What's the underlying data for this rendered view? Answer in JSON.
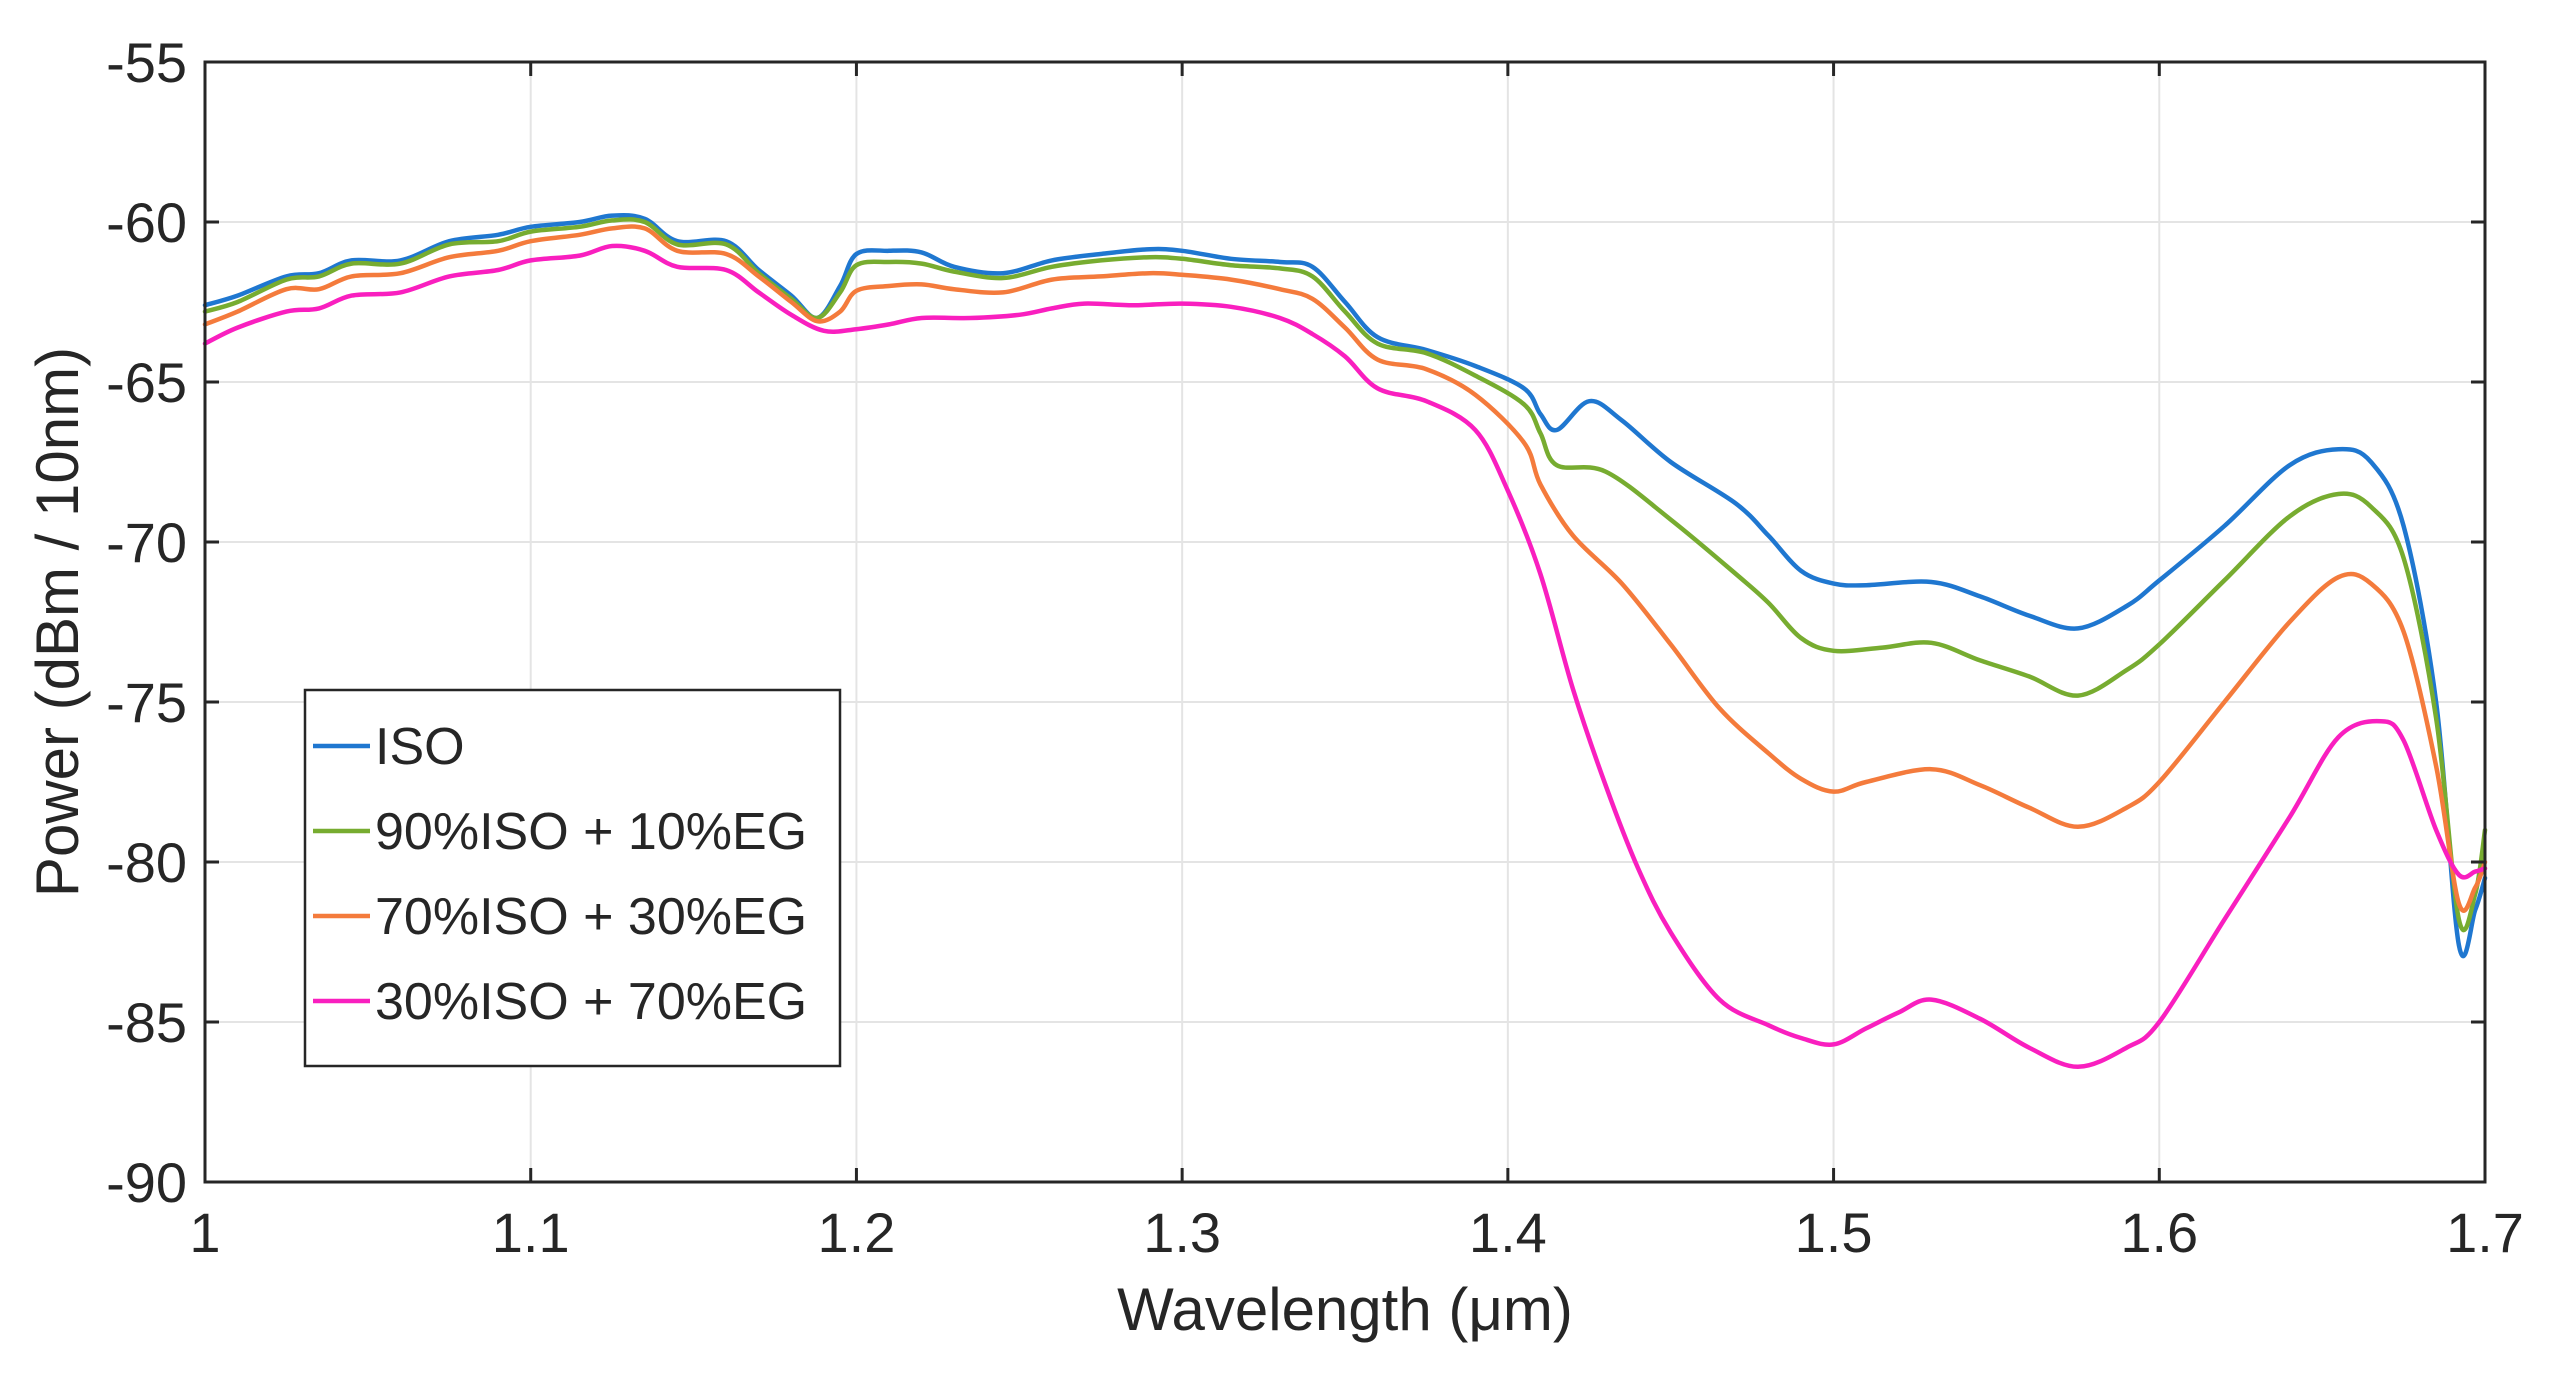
{
  "chart_data": {
    "type": "line",
    "title": "",
    "xlabel": "Wavelength (μm)",
    "ylabel": "Power (dBm / 10nm)",
    "xlim": [
      1.0,
      1.7
    ],
    "ylim": [
      -90,
      -55
    ],
    "grid": true,
    "legend_position": "lower-left",
    "x_ticks": [
      "1",
      "1.1",
      "1.2",
      "1.3",
      "1.4",
      "1.5",
      "1.6",
      "1.7"
    ],
    "y_ticks": [
      "-55",
      "-60",
      "-65",
      "-70",
      "-75",
      "-80",
      "-85",
      "-90"
    ],
    "series": [
      {
        "name": "ISO",
        "color": "#1f77d0",
        "points": [
          [
            1.0,
            -62.6
          ],
          [
            1.01,
            -62.3
          ],
          [
            1.025,
            -61.7
          ],
          [
            1.035,
            -61.6
          ],
          [
            1.045,
            -61.2
          ],
          [
            1.06,
            -61.2
          ],
          [
            1.075,
            -60.6
          ],
          [
            1.09,
            -60.4
          ],
          [
            1.1,
            -60.15
          ],
          [
            1.115,
            -60.0
          ],
          [
            1.125,
            -59.8
          ],
          [
            1.135,
            -59.9
          ],
          [
            1.145,
            -60.6
          ],
          [
            1.16,
            -60.6
          ],
          [
            1.17,
            -61.5
          ],
          [
            1.18,
            -62.3
          ],
          [
            1.188,
            -63.0
          ],
          [
            1.195,
            -62.0
          ],
          [
            1.2,
            -61.0
          ],
          [
            1.21,
            -60.9
          ],
          [
            1.22,
            -60.95
          ],
          [
            1.23,
            -61.4
          ],
          [
            1.245,
            -61.6
          ],
          [
            1.26,
            -61.2
          ],
          [
            1.275,
            -61.0
          ],
          [
            1.29,
            -60.85
          ],
          [
            1.3,
            -60.9
          ],
          [
            1.315,
            -61.15
          ],
          [
            1.33,
            -61.25
          ],
          [
            1.34,
            -61.4
          ],
          [
            1.35,
            -62.5
          ],
          [
            1.36,
            -63.6
          ],
          [
            1.375,
            -64.0
          ],
          [
            1.39,
            -64.5
          ],
          [
            1.405,
            -65.2
          ],
          [
            1.41,
            -66.0
          ],
          [
            1.415,
            -66.5
          ],
          [
            1.425,
            -65.6
          ],
          [
            1.435,
            -66.2
          ],
          [
            1.45,
            -67.5
          ],
          [
            1.47,
            -68.8
          ],
          [
            1.48,
            -69.8
          ],
          [
            1.49,
            -70.9
          ],
          [
            1.5,
            -71.3
          ],
          [
            1.51,
            -71.35
          ],
          [
            1.53,
            -71.25
          ],
          [
            1.545,
            -71.7
          ],
          [
            1.56,
            -72.3
          ],
          [
            1.575,
            -72.7
          ],
          [
            1.59,
            -72.0
          ],
          [
            1.6,
            -71.2
          ],
          [
            1.62,
            -69.5
          ],
          [
            1.64,
            -67.6
          ],
          [
            1.655,
            -67.1
          ],
          [
            1.665,
            -67.5
          ],
          [
            1.675,
            -69.5
          ],
          [
            1.685,
            -75.0
          ],
          [
            1.692,
            -82.6
          ],
          [
            1.697,
            -81.5
          ],
          [
            1.7,
            -80.5
          ]
        ]
      },
      {
        "name": "90%ISO + 10%EG",
        "color": "#77ac30",
        "points": [
          [
            1.0,
            -62.8
          ],
          [
            1.01,
            -62.5
          ],
          [
            1.025,
            -61.8
          ],
          [
            1.035,
            -61.7
          ],
          [
            1.045,
            -61.3
          ],
          [
            1.06,
            -61.3
          ],
          [
            1.075,
            -60.7
          ],
          [
            1.09,
            -60.6
          ],
          [
            1.1,
            -60.3
          ],
          [
            1.115,
            -60.15
          ],
          [
            1.125,
            -59.95
          ],
          [
            1.135,
            -60.0
          ],
          [
            1.145,
            -60.7
          ],
          [
            1.16,
            -60.7
          ],
          [
            1.17,
            -61.6
          ],
          [
            1.18,
            -62.4
          ],
          [
            1.188,
            -63.0
          ],
          [
            1.195,
            -62.2
          ],
          [
            1.2,
            -61.35
          ],
          [
            1.21,
            -61.25
          ],
          [
            1.22,
            -61.3
          ],
          [
            1.23,
            -61.55
          ],
          [
            1.245,
            -61.75
          ],
          [
            1.26,
            -61.4
          ],
          [
            1.275,
            -61.2
          ],
          [
            1.29,
            -61.1
          ],
          [
            1.3,
            -61.15
          ],
          [
            1.315,
            -61.35
          ],
          [
            1.33,
            -61.45
          ],
          [
            1.34,
            -61.7
          ],
          [
            1.35,
            -62.8
          ],
          [
            1.36,
            -63.8
          ],
          [
            1.375,
            -64.1
          ],
          [
            1.39,
            -64.8
          ],
          [
            1.405,
            -65.7
          ],
          [
            1.41,
            -66.6
          ],
          [
            1.415,
            -67.6
          ],
          [
            1.43,
            -67.8
          ],
          [
            1.45,
            -69.3
          ],
          [
            1.47,
            -71.0
          ],
          [
            1.48,
            -71.9
          ],
          [
            1.49,
            -73.0
          ],
          [
            1.5,
            -73.4
          ],
          [
            1.515,
            -73.3
          ],
          [
            1.53,
            -73.15
          ],
          [
            1.545,
            -73.7
          ],
          [
            1.56,
            -74.2
          ],
          [
            1.575,
            -74.8
          ],
          [
            1.59,
            -74.0
          ],
          [
            1.6,
            -73.2
          ],
          [
            1.62,
            -71.2
          ],
          [
            1.64,
            -69.2
          ],
          [
            1.655,
            -68.5
          ],
          [
            1.665,
            -68.9
          ],
          [
            1.675,
            -70.5
          ],
          [
            1.685,
            -75.5
          ],
          [
            1.692,
            -81.8
          ],
          [
            1.697,
            -81.0
          ],
          [
            1.7,
            -79.0
          ]
        ]
      },
      {
        "name": "70%ISO + 30%EG",
        "color": "#f47b3c",
        "points": [
          [
            1.0,
            -63.2
          ],
          [
            1.01,
            -62.8
          ],
          [
            1.025,
            -62.1
          ],
          [
            1.035,
            -62.1
          ],
          [
            1.045,
            -61.7
          ],
          [
            1.06,
            -61.6
          ],
          [
            1.075,
            -61.1
          ],
          [
            1.09,
            -60.9
          ],
          [
            1.1,
            -60.6
          ],
          [
            1.115,
            -60.4
          ],
          [
            1.125,
            -60.2
          ],
          [
            1.135,
            -60.2
          ],
          [
            1.145,
            -60.9
          ],
          [
            1.16,
            -61.0
          ],
          [
            1.17,
            -61.7
          ],
          [
            1.18,
            -62.5
          ],
          [
            1.188,
            -63.1
          ],
          [
            1.195,
            -62.8
          ],
          [
            1.2,
            -62.15
          ],
          [
            1.21,
            -62.0
          ],
          [
            1.22,
            -61.95
          ],
          [
            1.23,
            -62.1
          ],
          [
            1.245,
            -62.2
          ],
          [
            1.26,
            -61.8
          ],
          [
            1.275,
            -61.7
          ],
          [
            1.29,
            -61.6
          ],
          [
            1.3,
            -61.65
          ],
          [
            1.315,
            -61.8
          ],
          [
            1.33,
            -62.1
          ],
          [
            1.34,
            -62.4
          ],
          [
            1.35,
            -63.3
          ],
          [
            1.36,
            -64.3
          ],
          [
            1.375,
            -64.6
          ],
          [
            1.39,
            -65.4
          ],
          [
            1.405,
            -66.9
          ],
          [
            1.41,
            -68.2
          ],
          [
            1.42,
            -69.8
          ],
          [
            1.435,
            -71.3
          ],
          [
            1.45,
            -73.2
          ],
          [
            1.465,
            -75.2
          ],
          [
            1.48,
            -76.6
          ],
          [
            1.49,
            -77.4
          ],
          [
            1.5,
            -77.8
          ],
          [
            1.51,
            -77.5
          ],
          [
            1.53,
            -77.1
          ],
          [
            1.545,
            -77.6
          ],
          [
            1.56,
            -78.3
          ],
          [
            1.575,
            -78.9
          ],
          [
            1.59,
            -78.3
          ],
          [
            1.6,
            -77.5
          ],
          [
            1.62,
            -75.0
          ],
          [
            1.64,
            -72.5
          ],
          [
            1.655,
            -71.1
          ],
          [
            1.665,
            -71.3
          ],
          [
            1.675,
            -72.8
          ],
          [
            1.685,
            -77.0
          ],
          [
            1.692,
            -81.3
          ],
          [
            1.697,
            -80.8
          ],
          [
            1.7,
            -80.0
          ]
        ]
      },
      {
        "name": "30%ISO + 70%EG",
        "color": "#f91fbf",
        "points": [
          [
            1.0,
            -63.8
          ],
          [
            1.01,
            -63.3
          ],
          [
            1.025,
            -62.8
          ],
          [
            1.035,
            -62.7
          ],
          [
            1.045,
            -62.3
          ],
          [
            1.06,
            -62.2
          ],
          [
            1.075,
            -61.7
          ],
          [
            1.09,
            -61.5
          ],
          [
            1.1,
            -61.2
          ],
          [
            1.115,
            -61.05
          ],
          [
            1.125,
            -60.75
          ],
          [
            1.135,
            -60.9
          ],
          [
            1.145,
            -61.4
          ],
          [
            1.16,
            -61.5
          ],
          [
            1.17,
            -62.2
          ],
          [
            1.18,
            -62.9
          ],
          [
            1.19,
            -63.4
          ],
          [
            1.2,
            -63.35
          ],
          [
            1.21,
            -63.2
          ],
          [
            1.22,
            -63.0
          ],
          [
            1.235,
            -63.0
          ],
          [
            1.25,
            -62.9
          ],
          [
            1.26,
            -62.7
          ],
          [
            1.27,
            -62.55
          ],
          [
            1.285,
            -62.6
          ],
          [
            1.3,
            -62.55
          ],
          [
            1.315,
            -62.65
          ],
          [
            1.33,
            -63.0
          ],
          [
            1.34,
            -63.5
          ],
          [
            1.35,
            -64.2
          ],
          [
            1.36,
            -65.2
          ],
          [
            1.375,
            -65.6
          ],
          [
            1.39,
            -66.5
          ],
          [
            1.4,
            -68.4
          ],
          [
            1.41,
            -71.0
          ],
          [
            1.42,
            -74.6
          ],
          [
            1.43,
            -77.6
          ],
          [
            1.44,
            -80.2
          ],
          [
            1.45,
            -82.2
          ],
          [
            1.465,
            -84.3
          ],
          [
            1.48,
            -85.1
          ],
          [
            1.49,
            -85.5
          ],
          [
            1.5,
            -85.7
          ],
          [
            1.51,
            -85.2
          ],
          [
            1.52,
            -84.7
          ],
          [
            1.53,
            -84.3
          ],
          [
            1.545,
            -84.9
          ],
          [
            1.56,
            -85.8
          ],
          [
            1.575,
            -86.4
          ],
          [
            1.59,
            -85.8
          ],
          [
            1.6,
            -85.0
          ],
          [
            1.62,
            -81.8
          ],
          [
            1.64,
            -78.6
          ],
          [
            1.655,
            -76.1
          ],
          [
            1.668,
            -75.6
          ],
          [
            1.675,
            -76.2
          ],
          [
            1.685,
            -79.0
          ],
          [
            1.692,
            -80.4
          ],
          [
            1.697,
            -80.3
          ],
          [
            1.7,
            -80.2
          ]
        ]
      }
    ]
  }
}
